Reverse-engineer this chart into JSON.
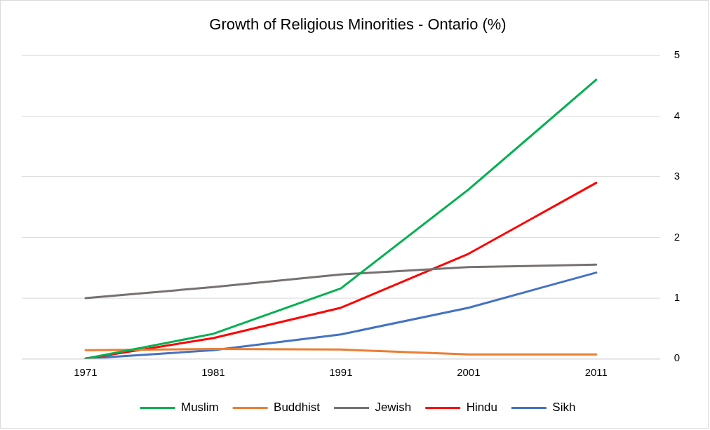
{
  "chart_data": {
    "type": "line",
    "title": "Growth of Religious Minorities - Ontario (%)",
    "categories": [
      "1971",
      "1981",
      "1991",
      "2001",
      "2011"
    ],
    "series": [
      {
        "name": "Muslim",
        "color": "#00b050",
        "values": [
          0,
          0.41,
          1.16,
          2.79,
          4.6
        ]
      },
      {
        "name": "Buddhist",
        "color": "#ed7d31",
        "values": [
          0.14,
          0.16,
          0.15,
          0.07,
          0.07
        ]
      },
      {
        "name": "Jewish",
        "color": "#767171",
        "values": [
          1.0,
          1.18,
          1.39,
          1.51,
          1.55
        ]
      },
      {
        "name": "Hindu",
        "color": "#ff0000",
        "values": [
          0,
          0.34,
          0.84,
          1.73,
          2.9
        ]
      },
      {
        "name": "Sikh",
        "color": "#4472c4",
        "values": [
          0,
          0.14,
          0.4,
          0.84,
          1.42
        ]
      }
    ],
    "ylim": [
      0,
      5
    ],
    "yticks": [
      0,
      1,
      2,
      3,
      4,
      5
    ],
    "grid": "y",
    "legend": "bottom",
    "marker": "none",
    "line_style": "solid"
  }
}
